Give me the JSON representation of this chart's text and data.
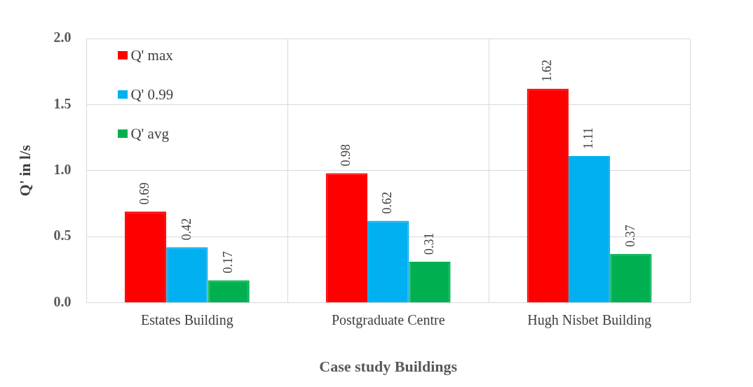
{
  "chart_data": {
    "type": "bar",
    "xlabel": "Case study Buildings",
    "ylabel": "Q' in l/s",
    "categories": [
      "Estates Building",
      "Postgraduate Centre",
      "Hugh Nisbet Building"
    ],
    "series": [
      {
        "name": "Q' max",
        "color": "#ff0000",
        "values": [
          0.69,
          0.98,
          1.62
        ]
      },
      {
        "name": "Q' 0.99",
        "color": "#00b0f0",
        "values": [
          0.42,
          0.62,
          1.11
        ]
      },
      {
        "name": "Q' avg",
        "color": "#00b050",
        "values": [
          0.17,
          0.31,
          0.37
        ]
      }
    ],
    "ylim": [
      0,
      2
    ],
    "yticks": [
      {
        "value": 0,
        "label": "0.0"
      },
      0.5,
      {
        "value": 1,
        "label": "1.0"
      },
      1.5,
      {
        "value": 2,
        "label": "2.0"
      }
    ],
    "grid": true,
    "legend": "top left",
    "data_labels": true
  }
}
